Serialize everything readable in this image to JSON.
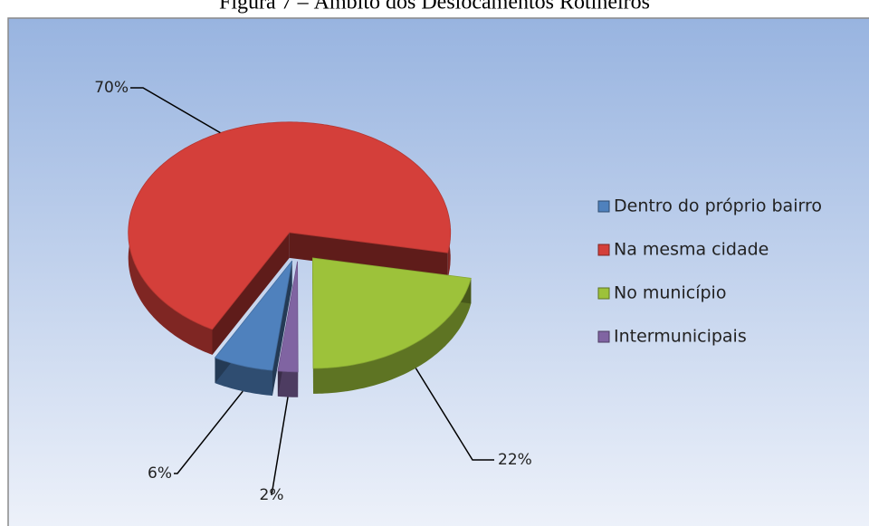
{
  "chart_data": {
    "type": "pie",
    "title": "Figura 7 – Âmbito dos Deslocamentos Rotineiros",
    "categories": [
      "Dentro do próprio bairro",
      "Na mesma cidade",
      "No município",
      "Intermunicipais"
    ],
    "values": [
      6,
      70,
      22,
      2
    ],
    "value_labels": [
      "6%",
      "70%",
      "22%",
      "2%"
    ],
    "colors": [
      "#4f81bd",
      "#d43f3a",
      "#9dc23a",
      "#8064a2"
    ],
    "legend": "right"
  }
}
